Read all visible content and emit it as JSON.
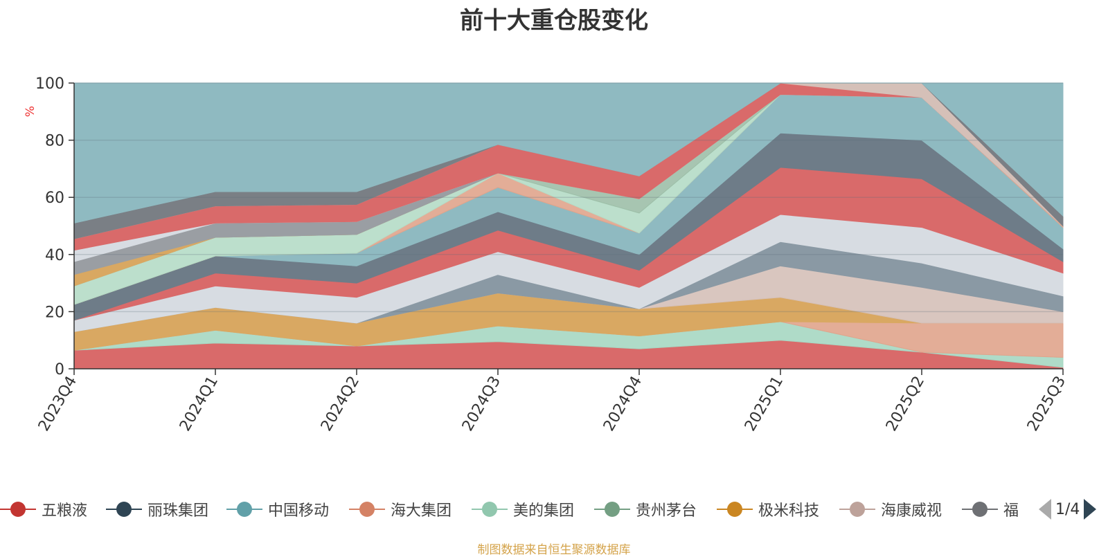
{
  "chart_data": {
    "type": "area",
    "title": "前十大重仓股变化",
    "ylabel": "%",
    "ylim": [
      0,
      100
    ],
    "yticks": [
      0,
      20,
      40,
      60,
      80,
      100
    ],
    "x": [
      "2023Q4",
      "2024Q1",
      "2024Q2",
      "2024Q3",
      "2024Q4",
      "2025Q1",
      "2025Q2",
      "2025Q3"
    ],
    "grid": true,
    "legend_position": "bottom",
    "stack_boundaries": [
      {
        "color": "#d96a6a",
        "opacity": 1.0,
        "values": [
          6.5,
          9,
          8,
          9.5,
          7,
          10,
          5.8,
          0.5
        ]
      },
      {
        "color": "#a6d7c2",
        "opacity": 0.9,
        "values": [
          6.5,
          13.5,
          8,
          15,
          11.5,
          16.5,
          5.8,
          4
        ]
      },
      {
        "color": "#e0a48c",
        "opacity": 0.9,
        "values": [
          6.5,
          13.5,
          8,
          15,
          11.5,
          16.5,
          16,
          16
        ]
      },
      {
        "color": "#d9a862",
        "opacity": 1.0,
        "values": [
          13,
          21.5,
          16,
          26.5,
          21,
          25,
          16,
          16
        ]
      },
      {
        "color": "#d5c0b8",
        "opacity": 0.9,
        "values": [
          13,
          21.5,
          16,
          26.5,
          21,
          36,
          28.5,
          20
        ]
      },
      {
        "color": "#8a99a4",
        "opacity": 1.0,
        "values": [
          13,
          21.5,
          16,
          33,
          21,
          44.5,
          37,
          25.5
        ]
      },
      {
        "color": "#d7dce2",
        "opacity": 1.0,
        "values": [
          17,
          29,
          25,
          41,
          28.5,
          54,
          49.5,
          33.5
        ]
      },
      {
        "color": "#d96a6a",
        "opacity": 1.0,
        "values": [
          17,
          33.5,
          30,
          48.5,
          34.5,
          70.5,
          66.5,
          37.5
        ]
      },
      {
        "color": "#6e7c88",
        "opacity": 1.0,
        "values": [
          22.5,
          39.5,
          36,
          55,
          40,
          82.5,
          80,
          42
        ]
      },
      {
        "color": "#8fbac1",
        "opacity": 1.0,
        "values": [
          22.5,
          39.5,
          40.5,
          63.5,
          47.5,
          96,
          95,
          49.5
        ]
      },
      {
        "color": "#e0a48c",
        "opacity": 0.9,
        "values": [
          22.5,
          39.5,
          40.5,
          68.5,
          47.5,
          96,
          95,
          50
        ]
      },
      {
        "color": "#b5dcc6",
        "opacity": 0.9,
        "values": [
          29,
          46,
          47,
          68.5,
          54.5,
          96,
          95,
          50
        ]
      },
      {
        "color": "#9dbfa8",
        "opacity": 0.9,
        "values": [
          29,
          46,
          47,
          68.5,
          59.5,
          96,
          95,
          50
        ]
      },
      {
        "color": "#d9a862",
        "opacity": 1.0,
        "values": [
          33,
          46,
          47,
          68.5,
          59.5,
          96,
          95,
          50
        ]
      },
      {
        "color": "#9a9ea3",
        "opacity": 1.0,
        "values": [
          37.5,
          51,
          51.5,
          68.5,
          59.5,
          96,
          95,
          50
        ]
      },
      {
        "color": "#d7dce2",
        "opacity": 1.0,
        "values": [
          41.5,
          51,
          51.5,
          68.5,
          59.5,
          96,
          95,
          50
        ]
      },
      {
        "color": "#d96a6a",
        "opacity": 1.0,
        "values": [
          45.5,
          57,
          57.5,
          78.5,
          67.5,
          100,
          95,
          50
        ]
      },
      {
        "color": "#d5c0b8",
        "opacity": 1.0,
        "values": [
          45.5,
          57,
          57.5,
          78.5,
          67.5,
          100,
          100,
          50
        ]
      },
      {
        "color": "#7a7f85",
        "opacity": 1.0,
        "values": [
          51,
          62,
          62,
          78.5,
          67.5,
          100,
          100,
          53.5
        ]
      },
      {
        "color": "#8fbac1",
        "opacity": 1.0,
        "values": [
          100,
          100,
          100,
          100,
          100,
          100,
          100,
          100
        ]
      }
    ],
    "legend": [
      {
        "name": "五粮液",
        "color": "#c23531"
      },
      {
        "name": "丽珠集团",
        "color": "#2f4554"
      },
      {
        "name": "中国移动",
        "color": "#61a0a8"
      },
      {
        "name": "海大集团",
        "color": "#d48265"
      },
      {
        "name": "美的集团",
        "color": "#91c7ae"
      },
      {
        "name": "贵州茅台",
        "color": "#749f83"
      },
      {
        "name": "极米科技",
        "color": "#ca8622"
      },
      {
        "name": "海康威视",
        "color": "#bda29a"
      },
      {
        "name": "福",
        "color": "#6e7074"
      }
    ]
  },
  "pager": {
    "text": "1/4"
  },
  "source_note": "制图数据来自恒生聚源数据库"
}
